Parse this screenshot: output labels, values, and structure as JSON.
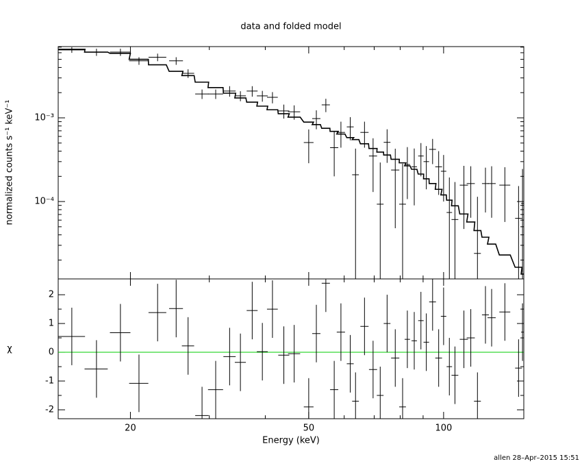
{
  "chart_data": [
    {
      "type": "scatter",
      "title": "data and folded model",
      "ylabel": "normalized counts s⁻¹ keV⁻¹",
      "xscale": "log",
      "yscale": "log",
      "color": "#000000",
      "x": [
        14.8,
        16.8,
        19.0,
        20.9,
        23.0,
        25.3,
        26.9,
        28.9,
        31.0,
        33.3,
        35.2,
        37.4,
        39.4,
        41.5,
        44.0,
        46.4,
        50.0,
        52.0,
        54.6,
        57.0,
        59.0,
        61.9,
        63.6,
        66.6,
        69.6,
        72.2,
        74.8,
        78.0,
        81.0,
        83.0,
        86,
        89,
        91.5,
        94.5,
        97.5,
        100,
        103,
        106,
        111,
        115,
        119,
        124,
        128,
        137,
        147,
        150
      ],
      "xerr": [
        1.04,
        1.0,
        1.0,
        1.03,
        1.05,
        0.9,
        0.85,
        1.0,
        1.2,
        1.05,
        1.0,
        1.05,
        1.1,
        1.15,
        1.25,
        1.45,
        1.25,
        1.1,
        1.15,
        1.2,
        1.25,
        1.1,
        1.1,
        1.4,
        1.45,
        1.25,
        1.3,
        1.65,
        1.4,
        1.15,
        1.2,
        1.25,
        1.3,
        1.65,
        1.7,
        1.4,
        1.45,
        1.85,
        2.35,
        2.4,
        2.1,
        2.2,
        2.7,
        3.85,
        2.6,
        1.05
      ],
      "values": [
        0.00648,
        0.0061,
        0.0061,
        0.0048,
        0.0053,
        0.0048,
        0.0034,
        0.00193,
        0.00193,
        0.00209,
        0.00183,
        0.00209,
        0.00183,
        0.00176,
        0.00121,
        0.00118,
        0.000507,
        0.00098,
        0.00143,
        0.00044,
        0.00067,
        0.00078,
        0.000209,
        0.00067,
        0.00035,
        9.3e-05,
        0.00051,
        0.000238,
        9.3e-05,
        0.000277,
        0.00026,
        0.00035,
        0.0003,
        0.00042,
        0.00026,
        0.00023,
        7.4e-05,
        6.1e-05,
        0.000157,
        0.000164,
        2.4e-05,
        0.000164,
        0.000164,
        0.000157,
        6.3e-05,
        9.5e-05
      ],
      "yerr": [
        0.0005,
        0.0006,
        0.0006,
        0.0005,
        0.00055,
        0.0005,
        0.0004,
        0.00025,
        0.00025,
        0.0003,
        0.00025,
        0.0003,
        0.00027,
        0.00027,
        0.00023,
        0.00023,
        0.00022,
        0.00025,
        0.00026,
        0.00024,
        0.00023,
        0.00024,
        0.00022,
        0.00023,
        0.00022,
        0.0002,
        0.00022,
        0.00019,
        0.00019,
        0.00017,
        0.00017,
        0.00015,
        0.00016,
        0.00014,
        0.00014,
        0.00013,
        0.00012,
        0.00011,
        0.00011,
        0.0001,
        9e-05,
        9e-05,
        0.0001,
        0.0001,
        9e-05,
        0.00015
      ],
      "model": [
        0.0066,
        0.0061,
        0.0059,
        0.005,
        0.0043,
        0.0036,
        0.0032,
        0.00267,
        0.0023,
        0.00197,
        0.00173,
        0.00154,
        0.00138,
        0.00125,
        0.00112,
        0.00102,
        0.00089,
        0.00083,
        0.00075,
        0.00069,
        0.00064,
        0.00058,
        0.00055,
        0.00049,
        0.00043,
        0.00039,
        0.00036,
        0.00032,
        0.00029,
        0.000267,
        0.000243,
        0.000213,
        0.000187,
        0.000164,
        0.00014,
        0.00012,
        0.000104,
        8.9e-05,
        7.1e-05,
        5.7e-05,
        4.5e-05,
        3.75e-05,
        3.1e-05,
        2.3e-05,
        1.64e-05,
        1.36e-05
      ],
      "xlim": [
        13.8,
        151
      ],
      "ylim": [
        1.19e-05,
        0.0071
      ],
      "xticks": [
        20,
        50,
        100
      ],
      "xminorticks": [
        30,
        40,
        60,
        70,
        80,
        90
      ],
      "yticks": [
        {
          "value": 0.001,
          "label": "10⁻³"
        },
        {
          "value": 0.0001,
          "label": "10⁻⁴"
        }
      ],
      "yminorticks": [
        2e-05,
        3e-05,
        4e-05,
        5e-05,
        6e-05,
        7e-05,
        8e-05,
        9e-05,
        0.0002,
        0.0003,
        0.0004,
        0.0005,
        0.0006,
        0.0007,
        0.0008,
        0.0009,
        0.002,
        0.003,
        0.004,
        0.005,
        0.006,
        0.007
      ]
    },
    {
      "type": "residual",
      "xlabel": "Energy (keV)",
      "ylabel": "χ",
      "xscale": "log",
      "color": "#000000",
      "zero_color": "#00cc00",
      "x": [
        14.8,
        16.8,
        19.0,
        20.9,
        23.0,
        25.3,
        26.9,
        28.9,
        31.0,
        33.3,
        35.2,
        37.4,
        39.4,
        41.5,
        44.0,
        46.4,
        50.0,
        52.0,
        54.6,
        57.0,
        59.0,
        61.9,
        63.6,
        66.6,
        69.6,
        72.2,
        74.8,
        78.0,
        81.0,
        83.0,
        86,
        89,
        91.5,
        94.5,
        97.5,
        100,
        103,
        106,
        111,
        115,
        119,
        124,
        128,
        137,
        147,
        150
      ],
      "xerr": [
        1.04,
        1.0,
        1.0,
        1.03,
        1.05,
        0.9,
        0.85,
        1.0,
        1.2,
        1.05,
        1.0,
        1.05,
        1.1,
        1.15,
        1.25,
        1.45,
        1.25,
        1.1,
        1.15,
        1.2,
        1.25,
        1.1,
        1.1,
        1.4,
        1.45,
        1.25,
        1.3,
        1.65,
        1.4,
        1.15,
        1.2,
        1.25,
        1.3,
        1.65,
        1.7,
        1.4,
        1.45,
        1.85,
        2.35,
        2.4,
        2.1,
        2.2,
        2.7,
        3.85,
        2.6,
        1.05
      ],
      "values": [
        0.55,
        -0.58,
        0.68,
        -1.08,
        1.38,
        1.52,
        0.22,
        -2.2,
        -1.3,
        -0.15,
        -0.35,
        1.45,
        0.02,
        1.5,
        -0.1,
        -0.05,
        -1.9,
        0.65,
        2.4,
        -1.3,
        0.7,
        -0.4,
        -1.7,
        0.9,
        -0.6,
        -1.5,
        1.0,
        -0.2,
        -1.9,
        0.45,
        0.4,
        1.1,
        0.35,
        1.75,
        -0.2,
        1.25,
        -0.5,
        -0.8,
        0.45,
        0.5,
        -1.7,
        1.3,
        1.2,
        1.4,
        -0.55,
        0.7
      ],
      "yerr": [
        1,
        1,
        1,
        1,
        1,
        1,
        1,
        1,
        1,
        1,
        1,
        1,
        1,
        1,
        1,
        1,
        1,
        1,
        1,
        1,
        1,
        1,
        1,
        1,
        1,
        1,
        1,
        1,
        1,
        1,
        1,
        1,
        1,
        1,
        1,
        1,
        1,
        1,
        1,
        1,
        1,
        1,
        1,
        1,
        1,
        1
      ],
      "xlim": [
        13.8,
        151
      ],
      "ylim": [
        -2.31,
        2.55
      ],
      "xticks": [
        20,
        50,
        100
      ],
      "xminorticks": [
        30,
        40,
        60,
        70,
        80,
        90
      ],
      "yticks": [
        -2,
        -1,
        0,
        1,
        2
      ],
      "yminorticks": [
        -1.5,
        -0.5,
        0.5,
        1.5
      ]
    }
  ],
  "footer": "allen 28–Apr–2015 15:51"
}
